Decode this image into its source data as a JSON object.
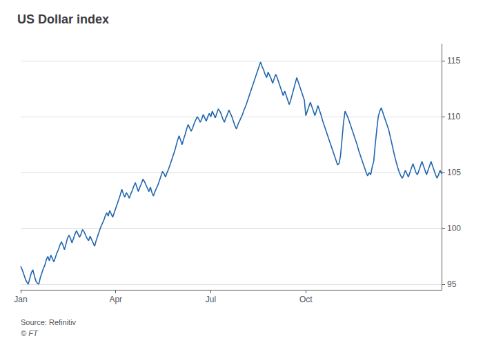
{
  "chart_data": {
    "type": "line",
    "title": "US Dollar index",
    "annotations": [
      "Source: Refinitiv",
      "© FT"
    ],
    "color": "#2166ac",
    "grid": true,
    "ylim": [
      94.5,
      116.5
    ],
    "yticks": [
      95,
      100,
      105,
      110,
      115
    ],
    "categories": [
      "Jan",
      null,
      null,
      null,
      null,
      null,
      null,
      null,
      null,
      null,
      null,
      null,
      null,
      null,
      null,
      null,
      null,
      null,
      null,
      null,
      null,
      null,
      null,
      null,
      null,
      null,
      null,
      null,
      null,
      null,
      null,
      null,
      null,
      null,
      null,
      null,
      null,
      null,
      null,
      null,
      null,
      null,
      null,
      null,
      null,
      null,
      null,
      null,
      null,
      null,
      null,
      null,
      null,
      null,
      null,
      null,
      null,
      null,
      null,
      null,
      null,
      null,
      null,
      "Apr",
      null,
      null,
      null,
      null,
      null,
      null,
      null,
      null,
      null,
      null,
      null,
      null,
      null,
      null,
      null,
      null,
      null,
      null,
      null,
      null,
      null,
      null,
      null,
      null,
      null,
      null,
      null,
      null,
      null,
      null,
      null,
      null,
      null,
      null,
      null,
      null,
      null,
      null,
      null,
      null,
      null,
      null,
      null,
      null,
      null,
      null,
      null,
      null,
      null,
      null,
      null,
      null,
      null,
      null,
      null,
      null,
      null,
      null,
      null,
      null,
      null,
      null,
      "Jul",
      null,
      null,
      null,
      null,
      null,
      null,
      null,
      null,
      null,
      null,
      null,
      null,
      null,
      null,
      null,
      null,
      null,
      null,
      null,
      null,
      null,
      null,
      null,
      null,
      null,
      null,
      null,
      null,
      null,
      null,
      null,
      null,
      null,
      null,
      null,
      null,
      null,
      null,
      null,
      null,
      null,
      null,
      null,
      null,
      null,
      null,
      null,
      null,
      null,
      null,
      null,
      null,
      null,
      null,
      null,
      null,
      null,
      null,
      null,
      null,
      null,
      null,
      "Oct",
      null,
      null,
      null,
      null,
      null,
      null,
      null,
      null,
      null,
      null,
      null,
      null,
      null,
      null,
      null,
      null,
      null,
      null,
      null,
      null,
      null,
      null,
      null,
      null,
      null,
      null,
      null,
      null,
      null,
      null,
      null,
      null,
      null,
      null,
      null,
      null,
      null,
      null,
      null,
      null,
      null,
      null,
      null,
      null,
      null,
      null,
      null,
      null,
      null,
      null,
      null,
      null,
      null,
      null,
      null,
      null,
      null,
      null,
      null,
      null,
      null,
      null,
      null,
      null,
      null,
      null,
      null,
      null,
      null,
      null,
      null,
      null,
      null,
      null,
      null,
      null,
      null,
      null,
      null,
      null,
      null,
      null,
      null,
      null,
      null,
      null,
      null,
      null,
      null,
      null
    ],
    "values": [
      96.6,
      96.3,
      95.9,
      95.5,
      95.2,
      95.0,
      95.5,
      96.0,
      96.3,
      95.8,
      95.3,
      95.1,
      95.0,
      95.6,
      96.0,
      96.4,
      96.7,
      97.2,
      97.5,
      97.1,
      97.6,
      97.3,
      97.0,
      97.4,
      97.8,
      98.1,
      98.5,
      98.8,
      98.5,
      98.1,
      98.6,
      99.1,
      99.4,
      99.1,
      98.7,
      99.1,
      99.5,
      99.8,
      99.5,
      99.2,
      99.5,
      99.9,
      99.7,
      99.4,
      99.1,
      98.9,
      99.3,
      99.0,
      98.7,
      98.4,
      98.9,
      99.3,
      99.7,
      100.1,
      100.4,
      100.7,
      101.1,
      101.4,
      101.1,
      101.6,
      101.3,
      101.0,
      101.4,
      101.8,
      102.2,
      102.6,
      103.0,
      103.5,
      103.1,
      102.8,
      103.2,
      103.0,
      102.7,
      103.1,
      103.4,
      103.8,
      104.1,
      103.7,
      103.3,
      103.7,
      104.0,
      104.4,
      104.2,
      103.9,
      103.6,
      103.3,
      103.7,
      103.2,
      102.9,
      103.3,
      103.6,
      103.9,
      104.3,
      104.7,
      105.1,
      104.9,
      104.6,
      105.0,
      105.3,
      105.7,
      106.1,
      106.5,
      106.9,
      107.4,
      107.9,
      108.3,
      107.9,
      107.5,
      108.0,
      108.4,
      108.9,
      109.3,
      109.0,
      108.7,
      109.0,
      109.4,
      109.7,
      110.0,
      109.8,
      109.5,
      109.8,
      110.2,
      109.9,
      109.6,
      110.0,
      110.3,
      110.0,
      110.5,
      110.2,
      109.9,
      110.3,
      110.7,
      110.5,
      110.2,
      109.8,
      109.5,
      109.9,
      110.2,
      110.6,
      110.3,
      110.0,
      109.6,
      109.2,
      108.9,
      109.3,
      109.6,
      109.9,
      110.2,
      110.6,
      110.9,
      111.3,
      111.7,
      112.1,
      112.5,
      112.9,
      113.3,
      113.7,
      114.1,
      114.5,
      114.9,
      114.5,
      114.2,
      113.8,
      113.5,
      114.0,
      113.7,
      113.4,
      113.0,
      113.4,
      113.8,
      113.5,
      113.1,
      112.7,
      112.3,
      111.9,
      112.3,
      111.9,
      111.5,
      111.1,
      111.5,
      112.0,
      112.5,
      113.0,
      113.5,
      113.1,
      112.7,
      112.3,
      111.9,
      111.5,
      110.1,
      110.5,
      110.9,
      111.3,
      110.9,
      110.5,
      110.1,
      110.5,
      111.0,
      110.6,
      110.2,
      109.7,
      109.3,
      108.9,
      108.5,
      108.1,
      107.7,
      107.3,
      106.9,
      106.5,
      106.1,
      105.7,
      105.8,
      106.5,
      108.0,
      109.5,
      110.5,
      110.2,
      109.9,
      109.5,
      109.1,
      108.7,
      108.3,
      107.9,
      107.5,
      107.0,
      106.6,
      106.2,
      105.8,
      105.4,
      105.0,
      104.7,
      105.0,
      104.8,
      105.5,
      106.0,
      107.5,
      108.8,
      110.0,
      110.5,
      110.8,
      110.4,
      110.0,
      109.6,
      109.2,
      108.8,
      108.2,
      107.6,
      107.0,
      106.4,
      105.9,
      105.4,
      105.0,
      104.7,
      104.5,
      104.8,
      105.2,
      104.9,
      104.6,
      105.0,
      105.4,
      105.8,
      105.4,
      105.0,
      104.8,
      105.2,
      105.6,
      106.0,
      105.6,
      105.2,
      104.8,
      105.2,
      105.6,
      106.0,
      105.6,
      105.2,
      104.8,
      104.5,
      104.8,
      105.2,
      104.9
    ]
  }
}
